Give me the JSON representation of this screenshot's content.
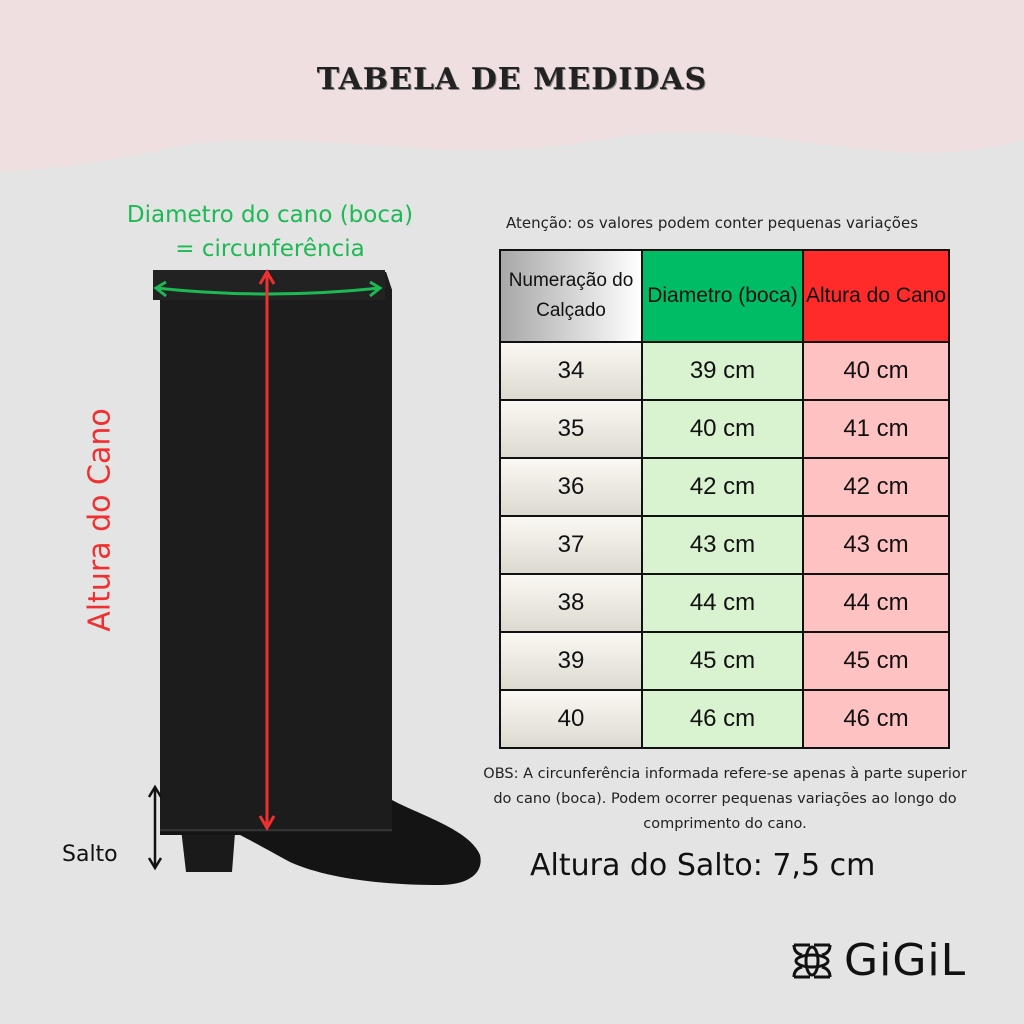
{
  "title": "TABELA DE MEDIDAS",
  "labels": {
    "diameter_line1": "Diametro do cano (boca)",
    "diameter_line2": "= circunferência",
    "shaft_height": "Altura do Cano",
    "heel": "Salto"
  },
  "attention": "Atenção: os valores podem conter pequenas variações",
  "table": {
    "headers": [
      "Numeração do Calçado",
      "Diametro (boca)",
      "Altura do Cano"
    ],
    "rows": [
      [
        "34",
        "39 cm",
        "40 cm"
      ],
      [
        "35",
        "40 cm",
        "41 cm"
      ],
      [
        "36",
        "42 cm",
        "42 cm"
      ],
      [
        "37",
        "43 cm",
        "43 cm"
      ],
      [
        "38",
        "44 cm",
        "44 cm"
      ],
      [
        "39",
        "45 cm",
        "45 cm"
      ],
      [
        "40",
        "46 cm",
        "46 cm"
      ]
    ]
  },
  "obs": "OBS: A circunferência informada refere-se apenas à parte superior do cano (boca). Podem ocorrer pequenas variações ao longo do comprimento do cano.",
  "heel_height": "Altura do Salto: 7,5 cm",
  "brand": "GiGiL",
  "colors": {
    "green": "#00bd65",
    "red": "#ff2a2a",
    "light_green": "#d9f2cf",
    "light_red": "#ffc2c2",
    "background_pink": "#efdfe0"
  }
}
